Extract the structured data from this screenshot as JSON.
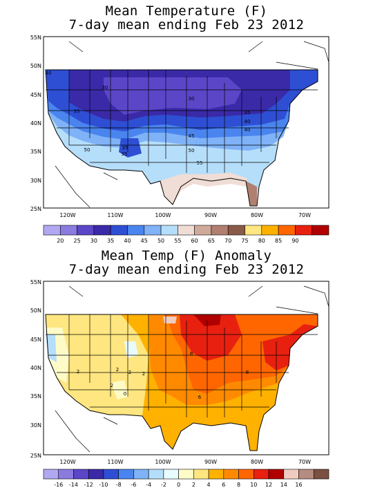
{
  "maps": [
    {
      "id": "mean",
      "title_line1": "Mean Temperature (F)",
      "title_line2": "7-day mean ending Feb 23 2012",
      "lat_labels": [
        "55N",
        "50N",
        "45N",
        "40N",
        "35N",
        "30N",
        "25N"
      ],
      "lon_labels": [
        "120W",
        "110W",
        "100W",
        "90W",
        "80W",
        "70W"
      ],
      "contour_labels": [
        "40",
        "30",
        "30",
        "35",
        "35",
        "35",
        "40",
        "45",
        "50",
        "50",
        "55",
        "35",
        "40"
      ],
      "colorbar": {
        "colors": [
          "#b0a8f0",
          "#8a7be0",
          "#5b46c8",
          "#3a2aa8",
          "#2e4fd4",
          "#4a84ee",
          "#7fb2f7",
          "#b5defa",
          "#f0ddd5",
          "#cfa99a",
          "#b07f70",
          "#8a5a48",
          "#ffe680",
          "#ffb100",
          "#ff6600",
          "#e82010",
          "#b00000"
        ],
        "tick_labels": [
          "20",
          "25",
          "30",
          "35",
          "40",
          "45",
          "50",
          "55",
          "60",
          "65",
          "70",
          "75",
          "80",
          "85",
          "90"
        ]
      }
    },
    {
      "id": "anomaly",
      "title_line1": "Mean Temp (F) Anomaly",
      "title_line2": "7-day mean ending Feb 23 2012",
      "lat_labels": [
        "55N",
        "50N",
        "45N",
        "40N",
        "35N",
        "30N",
        "25N"
      ],
      "lon_labels": [
        "120W",
        "110W",
        "100W",
        "90W",
        "80W",
        "70W"
      ],
      "contour_labels": [
        "2",
        "2",
        "2",
        "2",
        "0",
        "8",
        "8",
        "6",
        "2"
      ],
      "colorbar": {
        "colors": [
          "#b0a8f0",
          "#8a7be0",
          "#5b46c8",
          "#3a2aa8",
          "#2e4fd4",
          "#4a84ee",
          "#7fb2f7",
          "#b5defa",
          "#e8fbff",
          "#fffbc8",
          "#ffe680",
          "#ffb100",
          "#ff8a00",
          "#ff6600",
          "#e82010",
          "#b00000",
          "#f0ccc0",
          "#b48c80",
          "#7a5040"
        ],
        "tick_labels": [
          "-16",
          "-14",
          "-12",
          "-10",
          "-8",
          "-6",
          "-4",
          "-2",
          "0",
          "2",
          "4",
          "6",
          "8",
          "10",
          "12",
          "14",
          "16"
        ]
      }
    }
  ]
}
